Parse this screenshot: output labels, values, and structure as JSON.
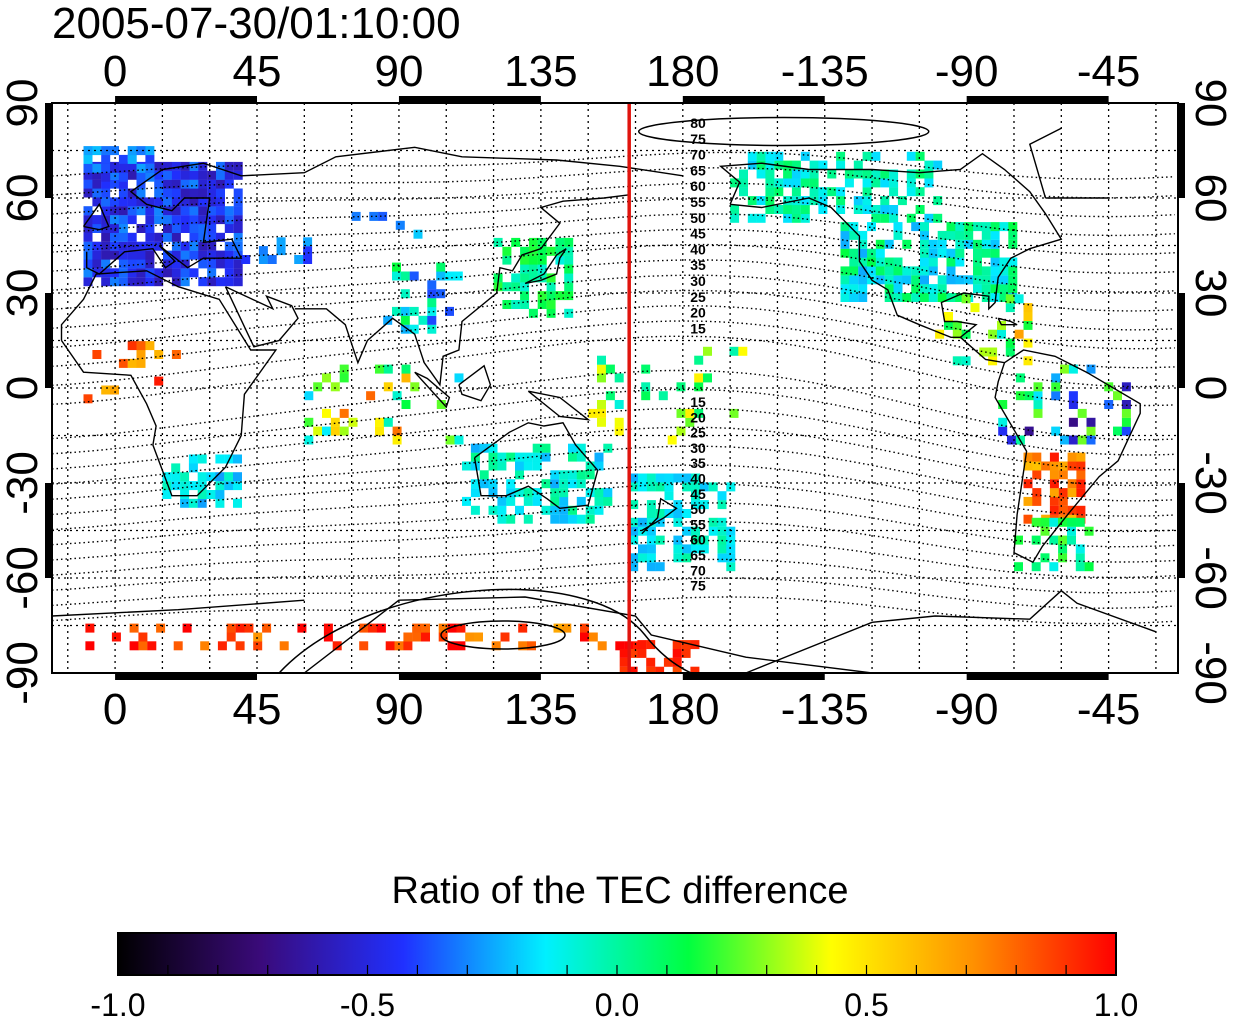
{
  "title": "2005-07-30/01:10:00",
  "map": {
    "lon_ticks": [
      "0",
      "45",
      "90",
      "135",
      "180",
      "-135",
      "-90",
      "-45"
    ],
    "lon_tick_values": [
      0,
      45,
      90,
      135,
      180,
      225,
      270,
      315
    ],
    "lat_ticks": [
      "90",
      "60",
      "30",
      "0",
      "-30",
      "-60",
      "-90"
    ],
    "lat_tick_values": [
      90,
      60,
      30,
      0,
      -30,
      -60,
      -90
    ],
    "lon_range": [
      -20,
      337
    ],
    "lat_range": [
      -90,
      90
    ],
    "marker_line": {
      "lon": 163,
      "color": "#e0140e"
    },
    "contour_labels": {
      "north": [
        "80",
        "75",
        "70",
        "65",
        "60",
        "55",
        "50",
        "45",
        "40",
        "35",
        "30",
        "25",
        "20",
        "15"
      ],
      "south": [
        "15",
        "20",
        "25",
        "30",
        "35",
        "40",
        "45",
        "50",
        "55",
        "60",
        "65",
        "70",
        "75"
      ]
    },
    "grid": true
  },
  "colorbar": {
    "title": "Ratio of the TEC difference",
    "ticks": [
      "-1.0",
      "-0.5",
      "0.0",
      "0.5",
      "1.0"
    ],
    "tick_values": [
      -1.0,
      -0.5,
      0.0,
      0.5,
      1.0
    ],
    "colormap": [
      "#000000",
      "#3a0a7a",
      "#2030ff",
      "#00f0ff",
      "#00ff40",
      "#ffff00",
      "#ff9000",
      "#ff0000"
    ]
  }
}
